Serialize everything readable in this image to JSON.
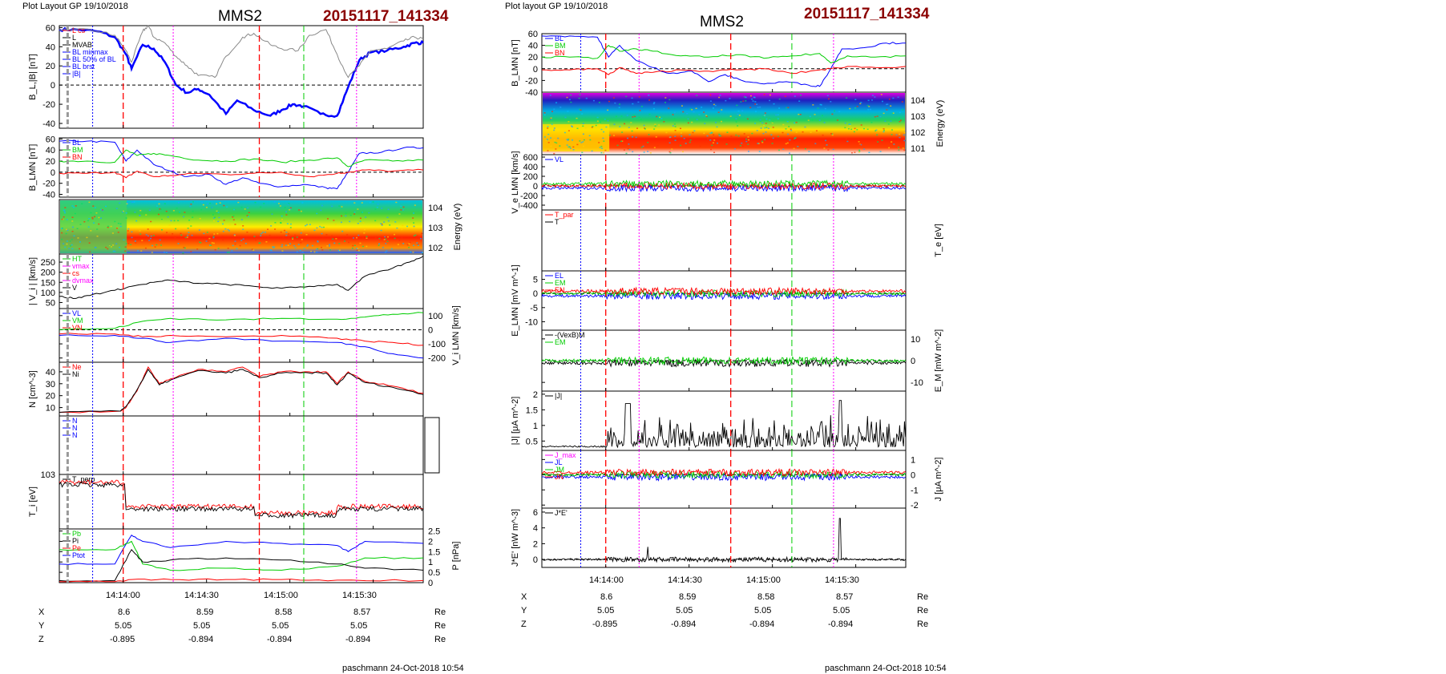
{
  "figures": [
    {
      "layout_label": "Plot Layout GP 19/10/2018",
      "satellite": "MMS2",
      "event": "20151117_141334",
      "time_ticks": [
        "14:14:00",
        "14:14:30",
        "14:15:00",
        "14:15:30"
      ],
      "position_rows": [
        {
          "label": "X",
          "values": [
            "8.6",
            "8.59",
            "8.58",
            "8.57"
          ],
          "unit": "Re"
        },
        {
          "label": "Y",
          "values": [
            "5.05",
            "5.05",
            "5.05",
            "5.05"
          ],
          "unit": "Re"
        },
        {
          "label": "Z",
          "values": [
            "-0.895",
            "-0.894",
            "-0.894",
            "-0.894"
          ],
          "unit": "Re"
        }
      ],
      "footer": "paschmann 24-Oct-2018 10:54"
    },
    {
      "layout_label": "Plot layout GP 19/10/2018",
      "satellite": "MMS2",
      "event": "20151117_141334",
      "time_ticks": [
        "14:14:00",
        "14:14:30",
        "14:15:00",
        "14:15:30"
      ],
      "position_rows": [
        {
          "label": "X",
          "values": [
            "8.6",
            "8.59",
            "8.58",
            "8.57"
          ],
          "unit": "Re"
        },
        {
          "label": "Y",
          "values": [
            "5.05",
            "5.05",
            "5.05",
            "5.05"
          ],
          "unit": "Re"
        },
        {
          "label": "Z",
          "values": [
            "-0.895",
            "-0.894",
            "-0.894",
            "-0.894"
          ],
          "unit": "Re"
        }
      ],
      "footer": "paschmann 24-Oct-2018 10:54"
    }
  ],
  "colors": {
    "blue": "#0000ff",
    "red": "#ff0000",
    "green": "#00cc00",
    "black": "#000000",
    "magenta": "#ff00ff",
    "gray": "#888888",
    "cyan": "#00bcd4",
    "title_red": "#8b0000"
  },
  "chart_data": [
    {
      "type": "line",
      "figure": 1,
      "panel": "B_L |B|",
      "ylabel": "B_L,|B| [nT]",
      "yticks": [
        60,
        40,
        20,
        0,
        -20,
        -40
      ],
      "ylim": [
        -45,
        62
      ],
      "x_is_time": true,
      "xlim": [
        "14:13:37",
        "14:15:48"
      ],
      "legend": [
        "L cs",
        "L",
        "MVAB",
        "BL minmax",
        "BL 50% of BL",
        "BL brst",
        "|B|"
      ],
      "series": [
        {
          "name": "BL brst",
          "color": "#0000ff",
          "x": [
            0,
            6,
            14,
            20,
            24,
            26,
            30,
            34,
            38,
            42,
            46,
            50,
            54,
            60,
            64,
            70,
            76,
            80,
            84,
            88,
            94,
            100,
            104,
            108,
            112,
            118,
            124,
            128,
            131
          ],
          "y": [
            58,
            58,
            56,
            50,
            32,
            17,
            42,
            38,
            24,
            0,
            -8,
            -4,
            -10,
            -30,
            -16,
            -26,
            -32,
            -26,
            -20,
            -22,
            -30,
            -32,
            -2,
            26,
            34,
            36,
            40,
            44,
            44
          ]
        },
        {
          "name": "|B|",
          "color": "#888888",
          "x": [
            0,
            6,
            14,
            20,
            24,
            26,
            30,
            32,
            34,
            38,
            42,
            46,
            50,
            56,
            60,
            66,
            70,
            76,
            80,
            86,
            90,
            96,
            100,
            104,
            108,
            112,
            118,
            124,
            128,
            131
          ],
          "y": [
            58,
            58,
            56,
            52,
            36,
            24,
            56,
            62,
            50,
            44,
            30,
            20,
            10,
            8,
            30,
            50,
            54,
            42,
            38,
            36,
            52,
            58,
            32,
            8,
            20,
            36,
            38,
            46,
            50,
            48
          ]
        }
      ]
    },
    {
      "type": "line",
      "figure": 1,
      "panel": "B_LMN",
      "ylabel": "B_LMN [nT]",
      "yticks": [
        60,
        40,
        20,
        0,
        -20,
        -40
      ],
      "ylim": [
        -45,
        62
      ],
      "x_is_time": true,
      "legend": [
        "BL",
        "BM",
        "BN"
      ],
      "series": [
        {
          "name": "BL",
          "color": "#0000ff",
          "x": [
            0,
            10,
            20,
            24,
            28,
            34,
            40,
            46,
            54,
            60,
            66,
            72,
            80,
            88,
            96,
            100,
            104,
            108,
            116,
            124,
            131
          ],
          "y": [
            56,
            56,
            54,
            20,
            40,
            14,
            2,
            -8,
            -4,
            -22,
            -10,
            -20,
            -26,
            -22,
            -28,
            -30,
            0,
            34,
            36,
            44,
            44
          ]
        },
        {
          "name": "BM",
          "color": "#00cc00",
          "x": [
            0,
            10,
            20,
            24,
            28,
            34,
            40,
            50,
            60,
            70,
            80,
            90,
            100,
            104,
            110,
            120,
            131
          ],
          "y": [
            20,
            20,
            18,
            40,
            30,
            34,
            30,
            22,
            20,
            24,
            18,
            22,
            26,
            10,
            22,
            20,
            22
          ]
        },
        {
          "name": "BN",
          "color": "#ff0000",
          "x": [
            0,
            10,
            20,
            24,
            28,
            34,
            40,
            50,
            60,
            70,
            80,
            90,
            100,
            104,
            110,
            120,
            131
          ],
          "y": [
            -2,
            -2,
            0,
            -10,
            2,
            -8,
            -6,
            -2,
            -4,
            -2,
            0,
            -8,
            -2,
            0,
            4,
            2,
            4
          ]
        }
      ]
    },
    {
      "type": "heatmap",
      "figure": 1,
      "panel": "ion spectrogram",
      "ylabel": "Energy (eV)",
      "ytick_labels": [
        "10^4",
        "10^3",
        "10^2"
      ],
      "ylim_exponent": [
        1,
        4.5
      ]
    },
    {
      "type": "line",
      "figure": 1,
      "panel": "|Vi|",
      "ylabel": "| V_i | [km/s]",
      "yticks": [
        250,
        200,
        150,
        100,
        50
      ],
      "ylim": [
        20,
        290
      ],
      "x_is_time": true,
      "legend": [
        "HT",
        "vmax",
        "cs",
        "dvmax",
        "V"
      ],
      "series": [
        {
          "name": "V",
          "color": "#000000",
          "x": [
            0,
            6,
            12,
            20,
            26,
            34,
            40,
            50,
            60,
            70,
            80,
            90,
            100,
            104,
            110,
            120,
            126,
            131
          ],
          "y": [
            80,
            70,
            90,
            110,
            130,
            150,
            160,
            145,
            140,
            130,
            120,
            130,
            140,
            110,
            180,
            220,
            250,
            280
          ]
        }
      ]
    },
    {
      "type": "line",
      "figure": 1,
      "panel": "Vi LMN",
      "ylabel": "V_i LMN [km/s]",
      "yticks": [
        100,
        0,
        -100,
        -200
      ],
      "ylim": [
        -230,
        150
      ],
      "x_is_time": true,
      "legend": [
        "VL",
        "VM",
        "VN"
      ],
      "series": [
        {
          "name": "VL",
          "color": "#0000ff",
          "x": [
            0,
            20,
            30,
            40,
            60,
            80,
            100,
            110,
            120,
            131
          ],
          "y": [
            -40,
            -40,
            -60,
            -90,
            -60,
            -80,
            -90,
            -120,
            -170,
            -200
          ]
        },
        {
          "name": "VM",
          "color": "#00cc00",
          "x": [
            0,
            20,
            30,
            40,
            60,
            80,
            100,
            110,
            120,
            131
          ],
          "y": [
            0,
            10,
            60,
            80,
            70,
            80,
            75,
            90,
            110,
            120
          ]
        },
        {
          "name": "VN",
          "color": "#ff0000",
          "x": [
            0,
            20,
            30,
            40,
            60,
            80,
            100,
            110,
            120,
            131
          ],
          "y": [
            -30,
            -30,
            -50,
            -40,
            -50,
            -40,
            -60,
            -80,
            -90,
            -110
          ]
        }
      ]
    },
    {
      "type": "line",
      "figure": 1,
      "panel": "N",
      "ylabel": "N [cm^-3]",
      "yticks": [
        40,
        30,
        20,
        10
      ],
      "ylim": [
        3,
        48
      ],
      "x_is_time": true,
      "legend": [
        "Ne",
        "Ni"
      ],
      "series": [
        {
          "name": "Ne",
          "color": "#ff0000",
          "x": [
            0,
            22,
            24,
            28,
            32,
            36,
            40,
            50,
            60,
            66,
            72,
            80,
            90,
            96,
            100,
            104,
            110,
            120,
            131
          ],
          "y": [
            6,
            7,
            10,
            24,
            44,
            30,
            34,
            42,
            40,
            44,
            36,
            40,
            40,
            40,
            30,
            40,
            32,
            28,
            22
          ]
        },
        {
          "name": "Ni",
          "color": "#000000",
          "x": [
            0,
            22,
            24,
            28,
            32,
            36,
            40,
            50,
            60,
            66,
            72,
            80,
            90,
            96,
            100,
            104,
            110,
            120,
            131
          ],
          "y": [
            6,
            7,
            11,
            25,
            42,
            29,
            33,
            41,
            39,
            42,
            35,
            39,
            39,
            39,
            29,
            39,
            31,
            27,
            21
          ]
        }
      ]
    },
    {
      "type": "line",
      "figure": 1,
      "panel": "N components",
      "legend": [
        "N",
        "N",
        "N"
      ]
    },
    {
      "type": "line",
      "figure": 1,
      "panel": "Ti",
      "ylabel": "T_i [eV]",
      "ytick_labels": [
        "10^3"
      ],
      "x_is_time": true,
      "legend": [
        "T_perp"
      ]
    },
    {
      "type": "line",
      "figure": 1,
      "panel": "P",
      "ylabel": "P [nPa]",
      "yticks": [
        2.5,
        2.0,
        1.5,
        1.0,
        0.5,
        0.0
      ],
      "ylim": [
        0,
        2.6
      ],
      "x_is_time": true,
      "legend": [
        "Pb",
        "Pi",
        "Pe",
        "Ptot"
      ],
      "series": [
        {
          "name": "Ptot",
          "color": "#0000ff",
          "x": [
            0,
            20,
            26,
            30,
            40,
            60,
            80,
            100,
            104,
            110,
            131
          ],
          "y": [
            0.9,
            0.9,
            2.3,
            2.0,
            1.7,
            2.0,
            1.9,
            1.8,
            1.5,
            2.0,
            1.9
          ]
        },
        {
          "name": "Pb",
          "color": "#00cc00",
          "x": [
            0,
            20,
            26,
            30,
            40,
            60,
            80,
            100,
            110,
            131
          ],
          "y": [
            1.6,
            1.6,
            2.0,
            0.9,
            0.6,
            0.7,
            0.6,
            0.8,
            1.2,
            1.2
          ]
        },
        {
          "name": "Pi",
          "color": "#000000",
          "x": [
            0,
            20,
            26,
            30,
            40,
            60,
            80,
            100,
            110,
            131
          ],
          "y": [
            0.1,
            0.1,
            1.6,
            1.0,
            1.1,
            1.2,
            1.1,
            0.9,
            0.7,
            0.6
          ]
        },
        {
          "name": "Pe",
          "color": "#ff0000",
          "x": [
            0,
            20,
            26,
            40,
            60,
            80,
            100,
            131
          ],
          "y": [
            0.05,
            0.05,
            0.15,
            0.15,
            0.15,
            0.15,
            0.12,
            0.1
          ]
        }
      ]
    },
    {
      "type": "line",
      "figure": 2,
      "panel": "B_LMN",
      "ylabel": "B_LMN [nT]",
      "yticks": [
        60,
        40,
        20,
        0,
        -20,
        -40
      ],
      "ylim": [
        -40,
        60
      ],
      "x_is_time": true,
      "legend": [
        "BL",
        "BM",
        "BN"
      ],
      "series": [
        {
          "name": "BL",
          "color": "#0000ff",
          "x": [
            0,
            10,
            20,
            24,
            28,
            34,
            40,
            46,
            54,
            60,
            66,
            72,
            80,
            88,
            96,
            100,
            104,
            108,
            116,
            124,
            131
          ],
          "y": [
            56,
            56,
            54,
            20,
            40,
            14,
            2,
            -8,
            -4,
            -22,
            -10,
            -20,
            -26,
            -22,
            -28,
            -30,
            0,
            34,
            36,
            44,
            44
          ]
        },
        {
          "name": "BM",
          "color": "#00cc00",
          "x": [
            0,
            10,
            20,
            24,
            28,
            34,
            40,
            50,
            60,
            70,
            80,
            90,
            100,
            104,
            110,
            120,
            131
          ],
          "y": [
            20,
            20,
            18,
            40,
            30,
            34,
            30,
            22,
            20,
            24,
            18,
            22,
            26,
            10,
            22,
            20,
            22
          ]
        },
        {
          "name": "BN",
          "color": "#ff0000",
          "x": [
            0,
            10,
            20,
            24,
            28,
            34,
            40,
            50,
            60,
            70,
            80,
            90,
            100,
            104,
            110,
            120,
            131
          ],
          "y": [
            -2,
            -2,
            0,
            -10,
            2,
            -8,
            -6,
            -2,
            -4,
            -2,
            0,
            -8,
            -2,
            0,
            4,
            2,
            4
          ]
        }
      ]
    },
    {
      "type": "heatmap",
      "figure": 2,
      "panel": "electron spectrogram",
      "ylabel": "Energy (eV)",
      "ytick_labels": [
        "10^4",
        "10^3",
        "10^2",
        "10^1"
      ]
    },
    {
      "type": "line",
      "figure": 2,
      "panel": "Ve LMN",
      "ylabel": "V_e LMN [km/s]",
      "yticks": [
        600,
        400,
        200,
        0,
        -200,
        -400
      ],
      "ylim": [
        -500,
        650
      ],
      "x_is_time": true,
      "legend": [
        "VL"
      ]
    },
    {
      "type": "line",
      "figure": 2,
      "panel": "Te",
      "ylabel": "T_e [eV]",
      "x_is_time": true,
      "legend": [
        "T_par",
        "T"
      ]
    },
    {
      "type": "line",
      "figure": 2,
      "panel": "E LMN",
      "ylabel": "E_LMN [mV m^-1]",
      "yticks": [
        5,
        0,
        -5,
        -10
      ],
      "ylim": [
        -13,
        8
      ],
      "x_is_time": true,
      "legend": [
        "EL",
        "EM",
        "EN"
      ]
    },
    {
      "type": "line",
      "figure": 2,
      "panel": "E_M",
      "ylabel": "E_M [mW m^-2]",
      "yticks": [
        10,
        0,
        -10
      ],
      "ylim": [
        -14,
        14
      ],
      "x_is_time": true,
      "legend": [
        "-(VexB)M",
        "EM"
      ]
    },
    {
      "type": "line",
      "figure": 2,
      "panel": "|J|",
      "ylabel": "|J| [μA m^-2]",
      "yticks": [
        2.0,
        1.5,
        1.0,
        0.5
      ],
      "ylim": [
        0.2,
        2.1
      ],
      "x_is_time": true,
      "legend": [
        "|J|"
      ]
    },
    {
      "type": "line",
      "figure": 2,
      "panel": "J",
      "ylabel": "J [μA m^-2]",
      "yticks": [
        1,
        0,
        -1,
        -2
      ],
      "ylim": [
        -2.2,
        1.6
      ],
      "x_is_time": true,
      "legend": [
        "J_max",
        "JL",
        "JM",
        "JN"
      ]
    },
    {
      "type": "line",
      "figure": 2,
      "panel": "J*E'",
      "ylabel": "J*E' [nW m^-3]",
      "yticks": [
        6,
        4,
        2,
        0
      ],
      "ylim": [
        -1,
        6.5
      ],
      "x_is_time": true,
      "legend": [
        "J*E'"
      ]
    }
  ]
}
